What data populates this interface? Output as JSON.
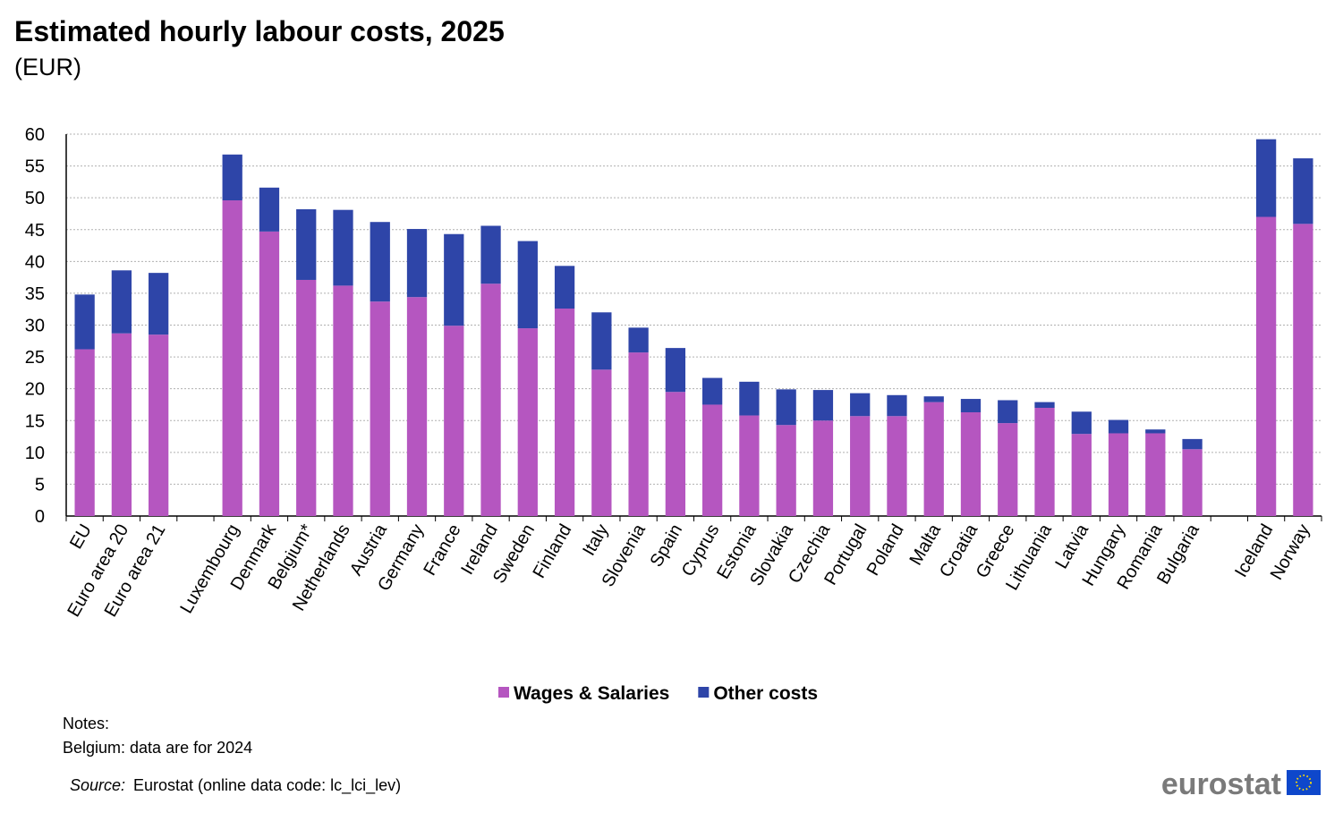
{
  "chart_data": {
    "type": "stacked-bar",
    "title": "Estimated hourly labour costs, 2025",
    "subtitle": "(EUR)",
    "categories": [
      "EU",
      "Euro area 20",
      "Euro area 21",
      null,
      "Luxembourg",
      "Denmark",
      "Belgium*",
      "Netherlands",
      "Austria",
      "Germany",
      "France",
      "Ireland",
      "Sweden",
      "Finland",
      "Italy",
      "Slovenia",
      "Spain",
      "Cyprus",
      "Estonia",
      "Slovakia",
      "Czechia",
      "Portugal",
      "Poland",
      "Malta",
      "Croatia",
      "Greece",
      "Lithuania",
      "Latvia",
      "Hungary",
      "Romania",
      "Bulgaria",
      null,
      "Iceland",
      "Norway"
    ],
    "series": [
      {
        "name": "Wages & Salaries",
        "color": "#b556c0",
        "values": [
          26.2,
          28.7,
          28.5,
          null,
          49.6,
          44.7,
          37.1,
          36.2,
          33.7,
          34.4,
          29.9,
          36.5,
          29.5,
          32.6,
          23.0,
          25.7,
          19.5,
          17.5,
          15.8,
          14.3,
          15.0,
          15.7,
          15.7,
          17.9,
          16.3,
          14.6,
          17.0,
          12.9,
          13.0,
          13.0,
          10.5,
          null,
          47.0,
          45.9
        ]
      },
      {
        "name": "Other costs",
        "color": "#2e45a8",
        "values": [
          8.6,
          9.9,
          9.7,
          null,
          7.2,
          6.9,
          11.1,
          11.9,
          12.5,
          10.7,
          14.4,
          9.1,
          13.7,
          6.7,
          9.0,
          3.9,
          6.9,
          4.2,
          5.3,
          5.6,
          4.8,
          3.6,
          3.3,
          0.9,
          2.1,
          3.6,
          0.9,
          3.5,
          2.1,
          0.6,
          1.6,
          null,
          12.2,
          10.3
        ]
      }
    ],
    "ylim": [
      0,
      60
    ],
    "yticks": [
      0,
      5,
      10,
      15,
      20,
      25,
      30,
      35,
      40,
      45,
      50,
      55,
      60
    ],
    "grid": true,
    "notes_title": "Notes:",
    "notes": [
      "Belgium: data are for 2024"
    ],
    "source_label": "Source:",
    "source": "Eurostat (online data code: lc_lci_lev)",
    "logo": "eurostat"
  }
}
